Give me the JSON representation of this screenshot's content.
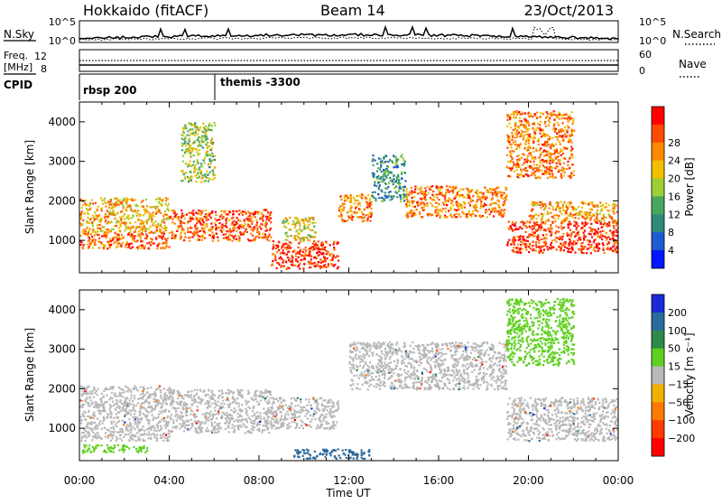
{
  "header": {
    "station": "Hokkaido (fitACF)",
    "beam": "Beam 14",
    "date": "23/Oct/2013"
  },
  "top_panels": {
    "nsky_label": "N.Sky",
    "nsearch_label": "N.Search",
    "nsky_ticks": [
      "10^5",
      "10^0"
    ],
    "nsearch_ticks": [
      "10^5",
      "10^0"
    ],
    "freq_label": "Freq.",
    "freq_unit": "[MHz]",
    "freq_ticks": [
      "12",
      "8"
    ],
    "nave_ticks": [
      "60",
      "0"
    ],
    "nave_label": "Nave",
    "cpid_label": "CPID",
    "cpid_entries": [
      {
        "text": "rbsp 200",
        "start_hour": 0.0
      },
      {
        "text": "themis -3300",
        "start_hour": 6.0
      }
    ]
  },
  "chart_data": [
    {
      "type": "heatmap",
      "name": "power-panel",
      "xlabel": "Time UT",
      "ylabel": "Slant Range [km]",
      "x_ticks": [
        "00:00",
        "04:00",
        "08:00",
        "12:00",
        "16:00",
        "20:00",
        "00:00"
      ],
      "x_range_hours": [
        0,
        24
      ],
      "y_ticks": [
        1000,
        2000,
        3000,
        4000
      ],
      "y_range_km": [
        180,
        4500
      ],
      "colorbar": {
        "label": "Power [dB]",
        "ticks": [
          4,
          8,
          12,
          16,
          20,
          24,
          28
        ],
        "range": [
          0,
          32
        ],
        "colors": [
          "#0016ff",
          "#1e5ad2",
          "#2f8a7a",
          "#4aa65e",
          "#9ccf33",
          "#f0c000",
          "#ff8800",
          "#ff4a00",
          "#ff0000"
        ]
      },
      "scatter_regions": [
        {
          "t0": 0.0,
          "t1": 4.0,
          "r0": 800,
          "r1": 1200,
          "value": 26
        },
        {
          "t0": 0.0,
          "t1": 4.0,
          "r0": 1200,
          "r1": 2100,
          "value": 21
        },
        {
          "t0": 4.0,
          "t1": 8.5,
          "r0": 1000,
          "r1": 1800,
          "value": 26
        },
        {
          "t0": 8.5,
          "t1": 11.5,
          "r0": 300,
          "r1": 1000,
          "value": 28
        },
        {
          "t0": 9.0,
          "t1": 10.5,
          "r0": 1000,
          "r1": 1600,
          "value": 18
        },
        {
          "t0": 11.5,
          "t1": 13.0,
          "r0": 1500,
          "r1": 2200,
          "value": 24
        },
        {
          "t0": 13.0,
          "t1": 14.5,
          "r0": 2000,
          "r1": 3200,
          "value": 10
        },
        {
          "t0": 14.5,
          "t1": 19.0,
          "r0": 1600,
          "r1": 2400,
          "value": 24
        },
        {
          "t0": 19.0,
          "t1": 24.0,
          "r0": 700,
          "r1": 1500,
          "value": 28
        },
        {
          "t0": 20.0,
          "t1": 24.0,
          "r0": 1500,
          "r1": 2000,
          "value": 22
        },
        {
          "t0": 19.0,
          "t1": 22.0,
          "r0": 2600,
          "r1": 4300,
          "value": 24
        },
        {
          "t0": 4.5,
          "t1": 6.0,
          "r0": 2500,
          "r1": 4000,
          "value": 16
        }
      ]
    },
    {
      "type": "heatmap",
      "name": "velocity-panel",
      "xlabel": "Time UT",
      "ylabel": "Slant Range [km]",
      "x_ticks": [
        "00:00",
        "04:00",
        "08:00",
        "12:00",
        "16:00",
        "20:00",
        "00:00"
      ],
      "x_range_hours": [
        0,
        24
      ],
      "y_ticks": [
        1000,
        2000,
        3000,
        4000
      ],
      "y_range_km": [
        180,
        4500
      ],
      "colorbar": {
        "label": "Velocity [m s⁻¹]",
        "ticks": [
          200,
          100,
          50,
          15,
          -15,
          -50,
          -100,
          -200
        ],
        "colors": [
          "#1a2ad8",
          "#2b6a9c",
          "#2e8a4a",
          "#5fd020",
          "#b8b8b8",
          "#f0b000",
          "#ff7a00",
          "#ff3a00",
          "#ff0000"
        ]
      },
      "scatter_regions": [
        {
          "t0": 0.0,
          "t1": 4.0,
          "r0": 700,
          "r1": 2100,
          "value": 0
        },
        {
          "t0": 4.0,
          "t1": 8.5,
          "r0": 900,
          "r1": 2000,
          "value": 0
        },
        {
          "t0": 8.5,
          "t1": 11.5,
          "r0": 1000,
          "r1": 1800,
          "value": 0
        },
        {
          "t0": 9.5,
          "t1": 13.0,
          "r0": 250,
          "r1": 500,
          "value": 110
        },
        {
          "t0": 12.0,
          "t1": 19.0,
          "r0": 2000,
          "r1": 3200,
          "value": 0
        },
        {
          "t0": 19.0,
          "t1": 24.0,
          "r0": 700,
          "r1": 1800,
          "value": 0
        },
        {
          "t0": 19.0,
          "t1": 22.0,
          "r0": 2600,
          "r1": 4300,
          "value": 30
        },
        {
          "t0": 0.0,
          "t1": 3.0,
          "r0": 400,
          "r1": 600,
          "value": 25
        }
      ]
    }
  ]
}
